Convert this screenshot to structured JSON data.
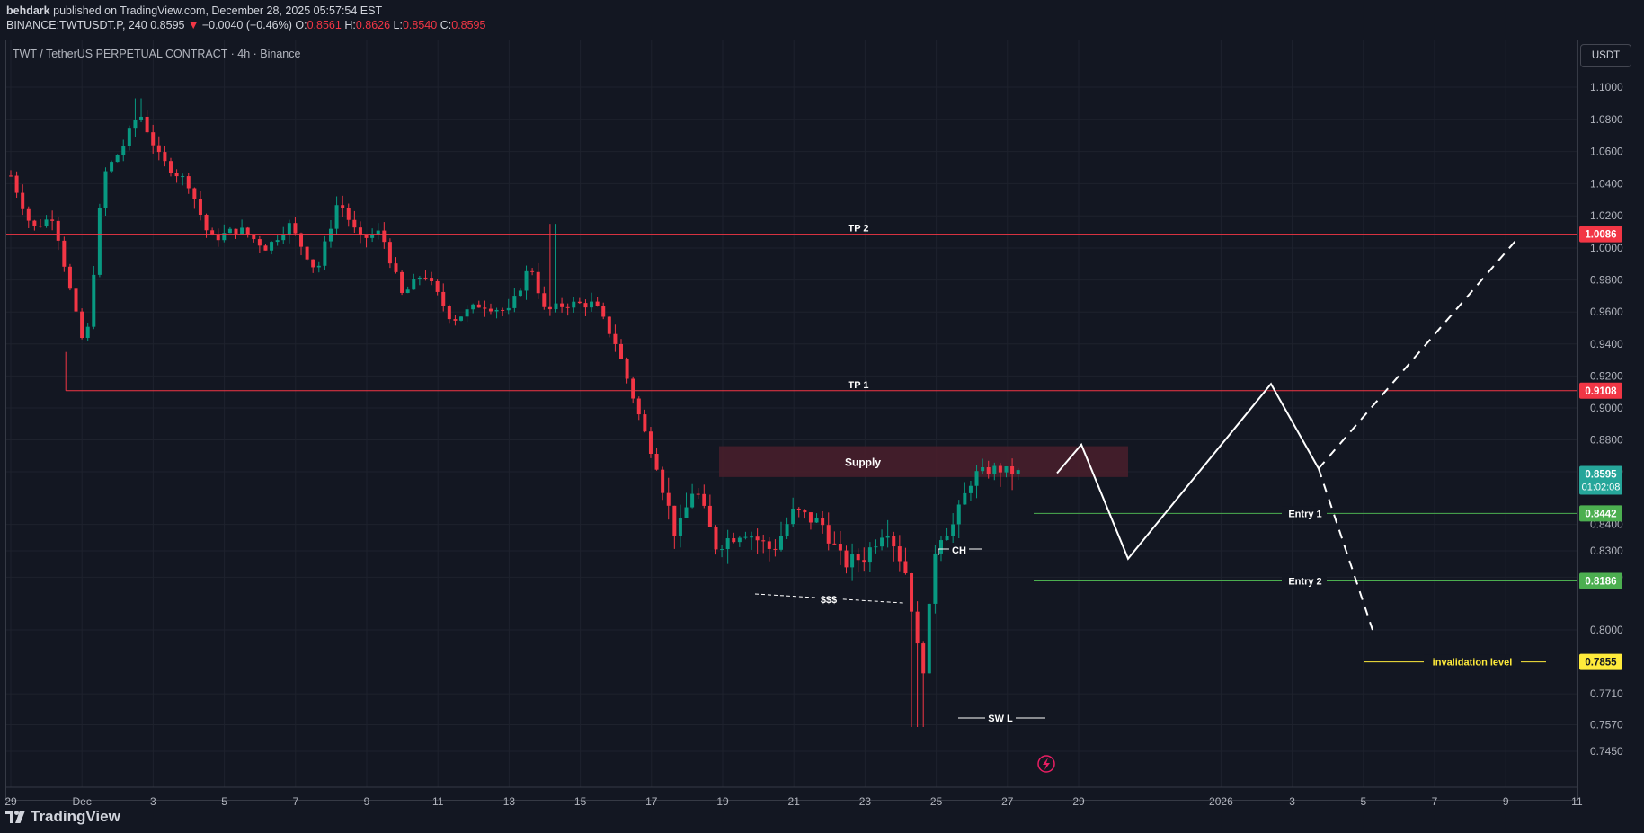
{
  "header": {
    "author": "behdark",
    "published": "published on TradingView.com, December 28, 2025 05:57:54 EST",
    "symbol": "BINANCE:TWTUSDT.P, 240",
    "last": "0.8595",
    "change_arrow": "▼",
    "change": "−0.0040 (−0.46%)",
    "o_label": "O:",
    "o_value": "0.8561",
    "h_label": "H:",
    "h_value": "0.8626",
    "l_label": "L:",
    "l_value": "0.8540",
    "c_label": "C:",
    "c_value": "0.8595"
  },
  "chart": {
    "title": "TWT / TetherUS PERPETUAL CONTRACT · 4h · Binance",
    "currency": "USDT"
  },
  "footer": {
    "brand": "TradingView",
    "logo_icon": "tradingview-logo-icon"
  },
  "colors": {
    "up": "#089981",
    "down": "#f23645",
    "tp_line": "#f23645",
    "entry_line": "#4caf50",
    "invalidation": "#ffeb3b",
    "supply_zone": "#4a1f2b",
    "last_price": "#26a69a",
    "bolt": "#e91e63"
  },
  "annotations": {
    "tp2": "TP 2",
    "tp1": "TP 1",
    "supply": "Supply",
    "entry1": "Entry 1",
    "entry2": "Entry 2",
    "invalidation": "invalidation level",
    "ch": "CH",
    "liquidity": "$$$",
    "swing_low": "SW L"
  },
  "price_badges": {
    "tp2": "1.0086",
    "tp1": "0.9108",
    "entry1": "0.8442",
    "entry2": "0.8186",
    "invalidation": "0.7855",
    "current": "0.8595",
    "countdown": "01:02:08"
  },
  "chart_data": {
    "type": "candlestick",
    "symbol": "TWTUSDT.P",
    "timeframe": "4h",
    "y_ticks": [
      "1.1000",
      "1.0800",
      "1.0600",
      "1.0400",
      "1.0200",
      "1.0000",
      "0.9800",
      "0.9600",
      "0.9400",
      "0.9200",
      "0.9000",
      "0.8800",
      "0.8600",
      "0.8400",
      "0.8300",
      "0.8200",
      "0.8000",
      "0.7710",
      "0.7570",
      "0.7450"
    ],
    "x_ticks": [
      "29",
      "Dec",
      "3",
      "5",
      "7",
      "9",
      "11",
      "13",
      "15",
      "17",
      "19",
      "21",
      "23",
      "25",
      "27",
      "29",
      "2026",
      "3",
      "5",
      "7",
      "9",
      "11"
    ],
    "levels": {
      "tp2": 1.0086,
      "tp1": 0.9108,
      "entry1": 0.8442,
      "entry2": 0.8186,
      "invalidation": 0.7855
    },
    "supply_zone": {
      "low": 0.858,
      "high": 0.876
    },
    "anchor_candles": [
      {
        "date": "Nov 29",
        "close": 1.045
      },
      {
        "date": "Dec 1",
        "close": 0.935
      },
      {
        "date": "Dec 4",
        "high": 1.093,
        "close": 1.065
      },
      {
        "date": "Dec 11",
        "close": 1.012
      },
      {
        "date": "Dec 15",
        "high": 1.015,
        "close": 0.965
      },
      {
        "date": "Dec 18",
        "close": 0.885
      },
      {
        "date": "Dec 19",
        "close": 0.832
      },
      {
        "date": "Dec 25",
        "low": 0.756,
        "close": 0.778
      },
      {
        "date": "Dec 28",
        "close": 0.8595
      }
    ],
    "projection_path": [
      {
        "date": "Dec 29",
        "price": 0.8595
      },
      {
        "date": "Dec 29",
        "price": 0.877
      },
      {
        "date": "Dec 31",
        "price": 0.827
      },
      {
        "date": "Jan 3",
        "price": 0.915
      },
      {
        "date": "Jan 5",
        "price": 0.862
      }
    ],
    "projection_bull": [
      {
        "date": "Jan 5",
        "price": 0.862
      },
      {
        "date": "Jan 10",
        "price": 1.007
      }
    ],
    "projection_bear": [
      {
        "date": "Jan 5",
        "price": 0.862
      },
      {
        "date": "Jan 6",
        "price": 0.8
      }
    ]
  }
}
